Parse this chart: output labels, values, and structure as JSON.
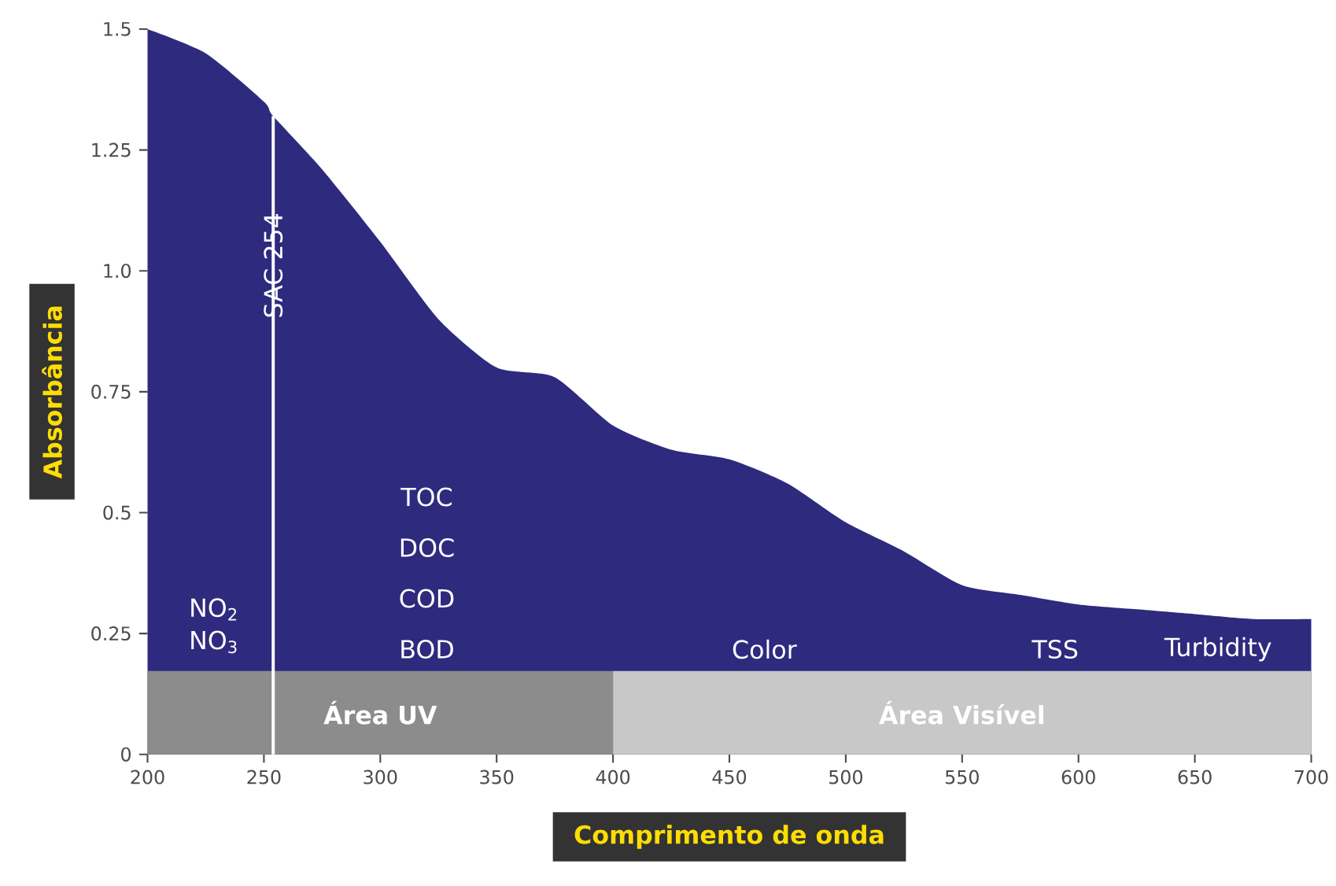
{
  "chart_data": {
    "type": "area",
    "xlabel": "Comprimento de onda",
    "ylabel": "Absorbância",
    "xlim": [
      200,
      700
    ],
    "ylim": [
      0,
      1.5
    ],
    "xticks": [
      200,
      250,
      300,
      350,
      400,
      450,
      500,
      550,
      600,
      650,
      700
    ],
    "yticks": [
      0,
      0.25,
      0.5,
      0.75,
      {
        "value": 1,
        "label": "1.0"
      },
      1.25,
      1.5
    ],
    "x": [
      200,
      225,
      250,
      254,
      275,
      300,
      325,
      350,
      375,
      400,
      425,
      450,
      475,
      500,
      525,
      550,
      575,
      600,
      625,
      650,
      675,
      700
    ],
    "series": [
      {
        "color": "#2e2a7e",
        "values": [
          1.5,
          1.45,
          1.35,
          1.32,
          1.21,
          1.06,
          0.9,
          0.8,
          0.78,
          0.68,
          0.63,
          0.61,
          0.56,
          0.48,
          0.42,
          0.35,
          0.33,
          0.31,
          0.3,
          0.29,
          0.28,
          0.28
        ]
      }
    ],
    "ref_lines": [
      {
        "axis": "x",
        "value": 254,
        "label": "SAC 254",
        "color": "#ffffff"
      }
    ],
    "bands": [
      {
        "axis": "x",
        "from": 200,
        "to": 400,
        "label": "Área UV",
        "color": "#8c8c8c"
      },
      {
        "axis": "x",
        "from": 400,
        "to": 700,
        "label": "Área Visível",
        "color": "#c8c8c8"
      }
    ],
    "annotations": [
      "NO$_{2}$",
      "NO$_{3}$",
      "TOC",
      "DOC",
      "COD",
      "BOD",
      "Color",
      "TSS",
      "Turbidity"
    ],
    "grid": false,
    "marker": "none"
  }
}
